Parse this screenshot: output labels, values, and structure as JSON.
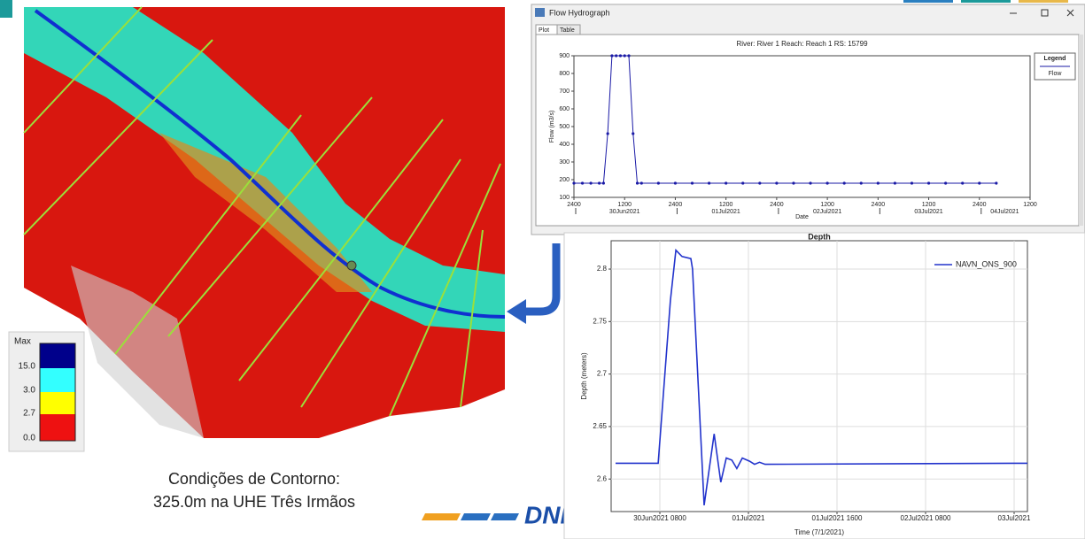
{
  "window": {
    "title": "Flow Hydrograph",
    "tabs": [
      "Plot",
      "Table"
    ]
  },
  "chart_data": [
    {
      "type": "line",
      "title": "River: River 1  Reach: Reach 1  RS: 15799",
      "x_label": "Date",
      "y_label": "Flow (m3/s)",
      "x": [
        0,
        2,
        4,
        6,
        7,
        8,
        9,
        10,
        11,
        12,
        13,
        14,
        15,
        16,
        20,
        24,
        28,
        32,
        36,
        40,
        44,
        48,
        52,
        56,
        60,
        64,
        68,
        72,
        76,
        80,
        84,
        88,
        92,
        96,
        100
      ],
      "series": [
        {
          "name": "Flow",
          "color": "#1a1aa6",
          "values": [
            180,
            180,
            180,
            180,
            180,
            460,
            900,
            900,
            900,
            900,
            900,
            460,
            180,
            180,
            180,
            180,
            180,
            180,
            180,
            180,
            180,
            180,
            180,
            180,
            180,
            180,
            180,
            180,
            180,
            180,
            180,
            180,
            180,
            180,
            180
          ]
        }
      ],
      "xlim": [
        0,
        108
      ],
      "xticks": [
        {
          "value": 0,
          "label": "2400"
        },
        {
          "value": 12,
          "label": "1200"
        },
        {
          "value": 24,
          "label": "2400"
        },
        {
          "value": 36,
          "label": "1200"
        },
        {
          "value": 48,
          "label": "2400"
        },
        {
          "value": 60,
          "label": "1200"
        },
        {
          "value": 72,
          "label": "2400"
        },
        {
          "value": 84,
          "label": "1200"
        },
        {
          "value": 96,
          "label": "2400"
        },
        {
          "value": 108,
          "label": "1200"
        }
      ],
      "xdates": [
        {
          "value": 12,
          "label": "30Jun2021"
        },
        {
          "value": 36,
          "label": "01Jul2021"
        },
        {
          "value": 60,
          "label": "02Jul2021"
        },
        {
          "value": 84,
          "label": "03Jul2021"
        },
        {
          "value": 102,
          "label": "04Jul2021"
        }
      ],
      "ylim": [
        100,
        900
      ],
      "yticks": [
        100,
        200,
        300,
        400,
        500,
        600,
        700,
        800,
        900
      ],
      "grid": false,
      "markers": true,
      "legend": "right",
      "legend_title": "Legend"
    },
    {
      "type": "line",
      "title": "Depth",
      "x_label": "Time (7/1/2021)",
      "y_label": "Depth (meters)",
      "x": [
        0,
        7.7,
        9.9,
        10.9,
        12,
        13.6,
        13.9,
        16,
        17.8,
        19,
        20,
        21,
        21.9,
        22.9,
        24.2,
        25.1,
        26,
        27,
        72,
        74.4
      ],
      "series": [
        {
          "name": "NAVN_ONS_900",
          "color": "#2233cc",
          "values": [
            2.615,
            2.615,
            2.77,
            2.818,
            2.812,
            2.81,
            2.8,
            2.575,
            2.643,
            2.597,
            2.62,
            2.618,
            2.61,
            2.62,
            2.617,
            2.614,
            2.616,
            2.614,
            2.615,
            2.615
          ]
        }
      ],
      "xlim": [
        -0.8,
        74.4
      ],
      "xticks": [
        {
          "value": 8,
          "label": "30Jun2021 0800"
        },
        {
          "value": 24,
          "label": "01Jul2021"
        },
        {
          "value": 40,
          "label": "01Jul2021 1600"
        },
        {
          "value": 56,
          "label": "02Jul2021 0800"
        },
        {
          "value": 72,
          "label": "03Jul2021"
        }
      ],
      "ylim": [
        2.569,
        2.827
      ],
      "yticks": [
        2.6,
        2.65,
        2.7,
        2.75,
        2.8
      ],
      "grid": true,
      "markers": false,
      "legend": "upper right"
    }
  ],
  "map_legend": {
    "labels": [
      "Max",
      "15.0",
      "3.0",
      "2.7",
      "0.0"
    ]
  },
  "caption": [
    "Condições de Contorno:",
    "325.0m na UHE Três Irmãos"
  ],
  "logo": "DNIT"
}
